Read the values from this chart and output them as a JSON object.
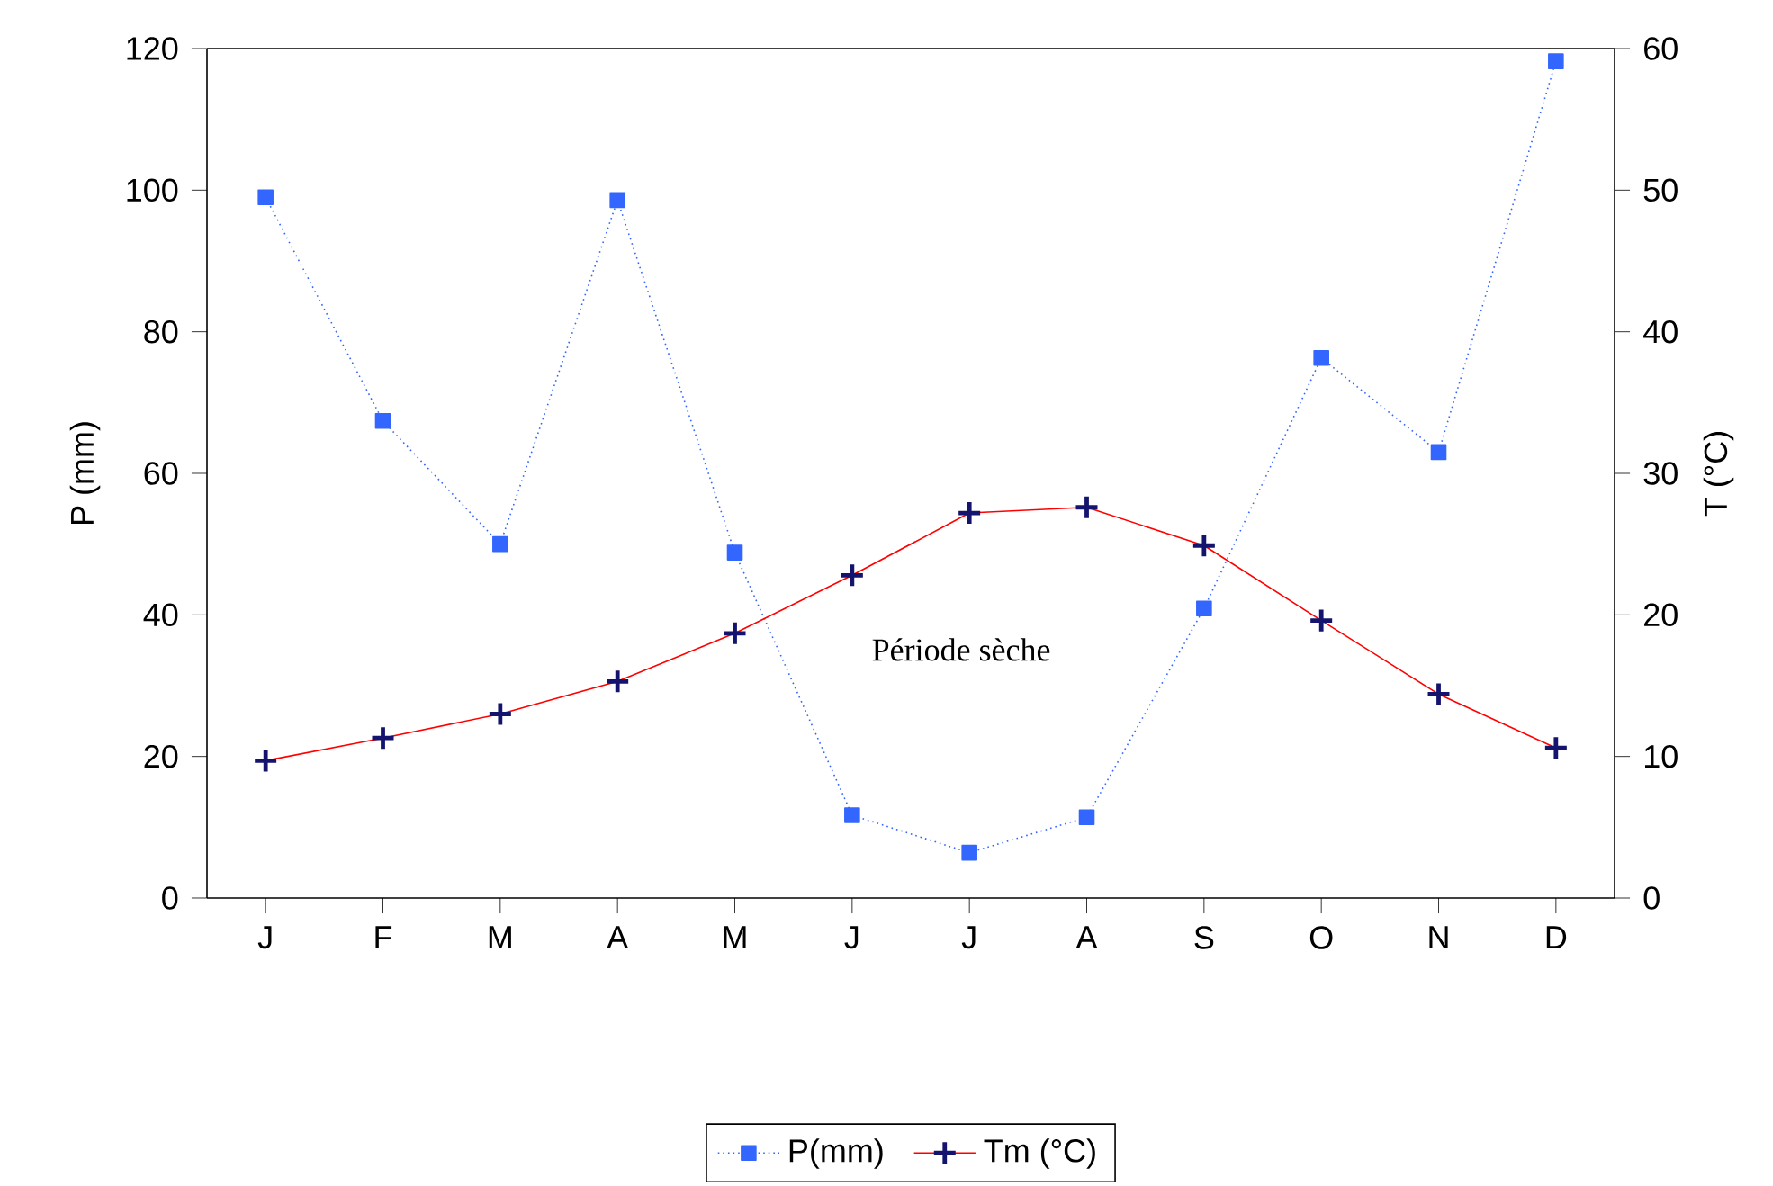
{
  "chart_data": {
    "type": "line",
    "categories": [
      "J",
      "F",
      "M",
      "A",
      "M",
      "J",
      "J",
      "A",
      "S",
      "O",
      "N",
      "D"
    ],
    "ylabel": "P (mm)",
    "y2label": "T (°C)",
    "ylim": [
      0,
      120
    ],
    "yticks": [
      0,
      20,
      40,
      60,
      80,
      100,
      120
    ],
    "y2lim": [
      0,
      60
    ],
    "y2ticks": [
      0,
      10,
      20,
      30,
      40,
      50,
      60
    ],
    "series": [
      {
        "name": "P(mm)",
        "color": "#3366ff",
        "marker": "square",
        "line_style": "dotted",
        "values": [
          99,
          67.4,
          50,
          98.6,
          48.8,
          11.7,
          6.4,
          11.4,
          40.9,
          76.3,
          63,
          118.2
        ]
      },
      {
        "name": "Tm (°C)",
        "color": "#ff0000",
        "marker": "cross",
        "line_style": "solid",
        "axis": "y2",
        "values": [
          9.7,
          11.3,
          13.0,
          15.3,
          18.7,
          22.8,
          27.2,
          27.6,
          24.9,
          19.6,
          14.4,
          10.6
        ]
      }
    ],
    "annotations": [
      "Période sèche"
    ],
    "legend": "bottom",
    "grid": false
  }
}
